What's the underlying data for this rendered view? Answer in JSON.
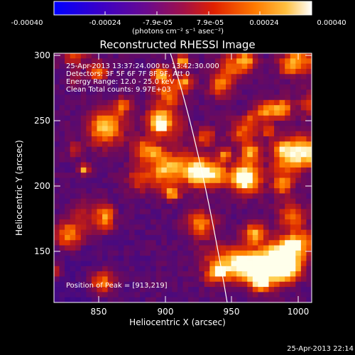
{
  "colorbar": {
    "ticks": [
      "-0.00040",
      "-0.00024",
      "-7.9e-05",
      "7.9e-05",
      "0.00024",
      "0.00040"
    ],
    "units": "(photons cm⁻² s⁻¹ asec⁻²)",
    "colors": [
      "#0000ff",
      "#4b00a8",
      "#7a0c79",
      "#b81a2a",
      "#e53f00",
      "#ff8b00",
      "#ffd54a",
      "#ffffff"
    ]
  },
  "title": "Reconstructed RHESSI Image",
  "annotation": {
    "line1": "25-Apr-2013 13:37:24.000 to 13:42:30.000",
    "line2": "Detectors: 3F 5F 6F 7F 8F 9F, Att 0",
    "line3": "Energy Range: 12.0 - 25.0 keV",
    "line4": "Clean     Total counts: 9.97E+03",
    "peak": "Position of Peak = [913,219]"
  },
  "axes": {
    "xlabel": "Heliocentric X (arcsec)",
    "ylabel": "Heliocentric Y (arcsec)",
    "xticks": [
      "850",
      "900",
      "950",
      "1000"
    ],
    "yticks": [
      "300",
      "250",
      "200",
      "150"
    ],
    "xrange": [
      813,
      1000
    ],
    "yrange": [
      110,
      300
    ]
  },
  "limb_color": "#ffffff",
  "timestamp": "25-Apr-2013 22:14"
}
